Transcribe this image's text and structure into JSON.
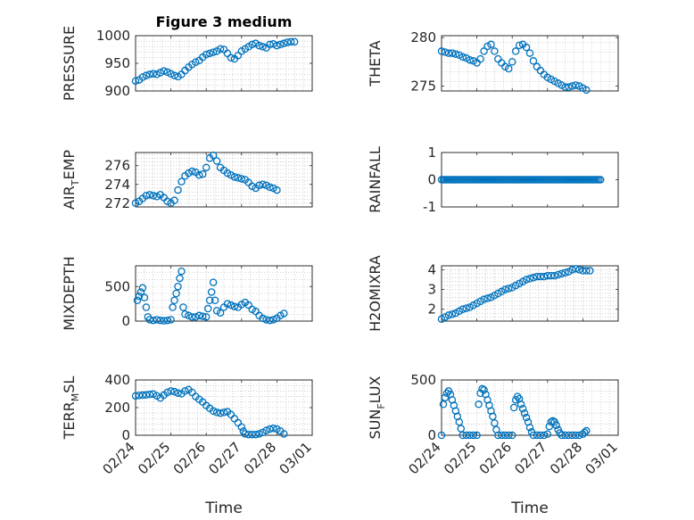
{
  "figure": {
    "title": "Figure 3 medium",
    "xlabel": "Time",
    "marker_color": "#0072BD"
  },
  "chart_data": [
    {
      "type": "scatter",
      "ylabel": "PRESSURE",
      "xlim": [
        "02/24",
        "03/01"
      ],
      "ylim": [
        900,
        1000
      ],
      "yticks": [
        900,
        950,
        1000
      ],
      "show_xticklabels": false,
      "grid": true,
      "points": [
        [
          0.0,
          918
        ],
        [
          0.1,
          920
        ],
        [
          0.2,
          925
        ],
        [
          0.3,
          928
        ],
        [
          0.4,
          930
        ],
        [
          0.5,
          931
        ],
        [
          0.6,
          930
        ],
        [
          0.7,
          933
        ],
        [
          0.8,
          936
        ],
        [
          0.9,
          934
        ],
        [
          1.0,
          931
        ],
        [
          1.1,
          928
        ],
        [
          1.2,
          926
        ],
        [
          1.3,
          930
        ],
        [
          1.4,
          937
        ],
        [
          1.5,
          943
        ],
        [
          1.6,
          948
        ],
        [
          1.7,
          952
        ],
        [
          1.8,
          955
        ],
        [
          1.9,
          961
        ],
        [
          2.0,
          966
        ],
        [
          2.1,
          968
        ],
        [
          2.2,
          970
        ],
        [
          2.3,
          972
        ],
        [
          2.4,
          976
        ],
        [
          2.5,
          975
        ],
        [
          2.6,
          968
        ],
        [
          2.7,
          960
        ],
        [
          2.8,
          958
        ],
        [
          2.9,
          964
        ],
        [
          3.0,
          972
        ],
        [
          3.1,
          976
        ],
        [
          3.2,
          980
        ],
        [
          3.3,
          984
        ],
        [
          3.4,
          986
        ],
        [
          3.5,
          982
        ],
        [
          3.6,
          980
        ],
        [
          3.7,
          978
        ],
        [
          3.8,
          984
        ],
        [
          3.9,
          985
        ],
        [
          4.0,
          982
        ],
        [
          4.1,
          984
        ],
        [
          4.2,
          986
        ],
        [
          4.3,
          988
        ],
        [
          4.4,
          989
        ],
        [
          4.5,
          989
        ]
      ]
    },
    {
      "type": "scatter",
      "ylabel": "THETA",
      "xlim": [
        "02/24",
        "03/01"
      ],
      "ylim": [
        274.5,
        280.2
      ],
      "yticks": [
        275,
        280
      ],
      "show_xticklabels": false,
      "grid": true,
      "points": [
        [
          0.0,
          278.6
        ],
        [
          0.1,
          278.5
        ],
        [
          0.2,
          278.4
        ],
        [
          0.3,
          278.4
        ],
        [
          0.4,
          278.3
        ],
        [
          0.5,
          278.2
        ],
        [
          0.6,
          278.0
        ],
        [
          0.7,
          277.9
        ],
        [
          0.8,
          277.7
        ],
        [
          0.9,
          277.6
        ],
        [
          1.0,
          277.4
        ],
        [
          1.1,
          277.8
        ],
        [
          1.2,
          278.6
        ],
        [
          1.3,
          279.1
        ],
        [
          1.4,
          279.3
        ],
        [
          1.5,
          278.6
        ],
        [
          1.6,
          277.8
        ],
        [
          1.7,
          277.4
        ],
        [
          1.8,
          277.0
        ],
        [
          1.9,
          276.8
        ],
        [
          2.0,
          277.5
        ],
        [
          2.1,
          278.6
        ],
        [
          2.2,
          279.2
        ],
        [
          2.3,
          279.3
        ],
        [
          2.4,
          279.0
        ],
        [
          2.5,
          278.4
        ],
        [
          2.6,
          277.6
        ],
        [
          2.7,
          277.0
        ],
        [
          2.8,
          276.6
        ],
        [
          2.9,
          276.2
        ],
        [
          3.0,
          275.9
        ],
        [
          3.1,
          275.7
        ],
        [
          3.2,
          275.5
        ],
        [
          3.3,
          275.3
        ],
        [
          3.4,
          275.1
        ],
        [
          3.5,
          274.9
        ],
        [
          3.6,
          274.9
        ],
        [
          3.7,
          275.0
        ],
        [
          3.8,
          275.1
        ],
        [
          3.9,
          275.0
        ],
        [
          4.0,
          274.8
        ],
        [
          4.1,
          274.6
        ]
      ]
    },
    {
      "type": "scatter",
      "ylabel_parts": [
        "AIR",
        "T",
        "EMP"
      ],
      "xlim": [
        "02/24",
        "03/01"
      ],
      "ylim": [
        271.6,
        277.4
      ],
      "yticks": [
        272,
        274,
        276
      ],
      "show_xticklabels": false,
      "grid": true,
      "points": [
        [
          0.0,
          272.0
        ],
        [
          0.1,
          272.2
        ],
        [
          0.2,
          272.5
        ],
        [
          0.3,
          272.8
        ],
        [
          0.4,
          272.9
        ],
        [
          0.5,
          272.8
        ],
        [
          0.6,
          272.7
        ],
        [
          0.7,
          272.9
        ],
        [
          0.8,
          272.6
        ],
        [
          0.9,
          272.2
        ],
        [
          1.0,
          272.0
        ],
        [
          1.1,
          272.3
        ],
        [
          1.2,
          273.4
        ],
        [
          1.3,
          274.3
        ],
        [
          1.4,
          274.9
        ],
        [
          1.5,
          275.2
        ],
        [
          1.6,
          275.4
        ],
        [
          1.7,
          275.3
        ],
        [
          1.8,
          275.0
        ],
        [
          1.9,
          275.1
        ],
        [
          2.0,
          275.8
        ],
        [
          2.1,
          276.8
        ],
        [
          2.2,
          277.1
        ],
        [
          2.3,
          276.5
        ],
        [
          2.4,
          275.8
        ],
        [
          2.5,
          275.5
        ],
        [
          2.6,
          275.2
        ],
        [
          2.7,
          275.0
        ],
        [
          2.8,
          274.8
        ],
        [
          2.9,
          274.7
        ],
        [
          3.0,
          274.6
        ],
        [
          3.1,
          274.5
        ],
        [
          3.2,
          274.2
        ],
        [
          3.3,
          273.8
        ],
        [
          3.4,
          273.6
        ],
        [
          3.5,
          273.9
        ],
        [
          3.6,
          274.0
        ],
        [
          3.7,
          273.9
        ],
        [
          3.8,
          273.7
        ],
        [
          3.9,
          273.6
        ],
        [
          4.0,
          273.4
        ]
      ]
    },
    {
      "type": "scatter",
      "ylabel": "RAINFALL",
      "xlim": [
        "02/24",
        "03/01"
      ],
      "ylim": [
        -1,
        1
      ],
      "yticks": [
        -1,
        0,
        1
      ],
      "show_xticklabels": false,
      "grid": false,
      "constant_value": 0,
      "x_range": [
        0.0,
        4.5
      ],
      "point_count": 91
    },
    {
      "type": "scatter",
      "ylabel": "MIXDEPTH",
      "xlim": [
        "02/24",
        "03/01"
      ],
      "ylim": [
        0,
        800
      ],
      "yticks": [
        0,
        500
      ],
      "show_xticklabels": false,
      "grid": true,
      "points": [
        [
          0.05,
          300
        ],
        [
          0.1,
          360
        ],
        [
          0.15,
          420
        ],
        [
          0.2,
          480
        ],
        [
          0.25,
          340
        ],
        [
          0.3,
          200
        ],
        [
          0.35,
          60
        ],
        [
          0.4,
          20
        ],
        [
          0.5,
          10
        ],
        [
          0.6,
          20
        ],
        [
          0.7,
          10
        ],
        [
          0.8,
          5
        ],
        [
          0.9,
          10
        ],
        [
          1.0,
          20
        ],
        [
          1.05,
          200
        ],
        [
          1.1,
          300
        ],
        [
          1.15,
          400
        ],
        [
          1.2,
          500
        ],
        [
          1.25,
          620
        ],
        [
          1.3,
          720
        ],
        [
          1.35,
          200
        ],
        [
          1.4,
          100
        ],
        [
          1.5,
          80
        ],
        [
          1.6,
          60
        ],
        [
          1.7,
          60
        ],
        [
          1.8,
          80
        ],
        [
          1.9,
          70
        ],
        [
          2.0,
          60
        ],
        [
          2.05,
          180
        ],
        [
          2.1,
          300
        ],
        [
          2.15,
          420
        ],
        [
          2.2,
          560
        ],
        [
          2.25,
          300
        ],
        [
          2.3,
          150
        ],
        [
          2.4,
          120
        ],
        [
          2.5,
          200
        ],
        [
          2.6,
          250
        ],
        [
          2.7,
          230
        ],
        [
          2.8,
          210
        ],
        [
          2.9,
          200
        ],
        [
          3.0,
          240
        ],
        [
          3.1,
          270
        ],
        [
          3.2,
          230
        ],
        [
          3.3,
          170
        ],
        [
          3.4,
          140
        ],
        [
          3.5,
          80
        ],
        [
          3.6,
          40
        ],
        [
          3.7,
          20
        ],
        [
          3.8,
          10
        ],
        [
          3.9,
          20
        ],
        [
          4.0,
          40
        ],
        [
          4.1,
          80
        ],
        [
          4.2,
          110
        ]
      ]
    },
    {
      "type": "scatter",
      "ylabel": "H2OMIXRA",
      "xlim": [
        "02/24",
        "03/01"
      ],
      "ylim": [
        1.4,
        4.2
      ],
      "yticks": [
        2,
        3,
        4
      ],
      "show_xticklabels": false,
      "grid": true,
      "points": [
        [
          0.0,
          1.5
        ],
        [
          0.1,
          1.6
        ],
        [
          0.2,
          1.7
        ],
        [
          0.3,
          1.75
        ],
        [
          0.4,
          1.8
        ],
        [
          0.5,
          1.9
        ],
        [
          0.6,
          2.0
        ],
        [
          0.7,
          2.05
        ],
        [
          0.8,
          2.1
        ],
        [
          0.9,
          2.2
        ],
        [
          1.0,
          2.3
        ],
        [
          1.1,
          2.4
        ],
        [
          1.2,
          2.5
        ],
        [
          1.3,
          2.55
        ],
        [
          1.4,
          2.6
        ],
        [
          1.5,
          2.7
        ],
        [
          1.6,
          2.8
        ],
        [
          1.7,
          2.9
        ],
        [
          1.8,
          3.0
        ],
        [
          1.9,
          3.05
        ],
        [
          2.0,
          3.1
        ],
        [
          2.1,
          3.2
        ],
        [
          2.2,
          3.3
        ],
        [
          2.3,
          3.4
        ],
        [
          2.4,
          3.5
        ],
        [
          2.5,
          3.55
        ],
        [
          2.6,
          3.6
        ],
        [
          2.7,
          3.65
        ],
        [
          2.8,
          3.65
        ],
        [
          2.9,
          3.65
        ],
        [
          3.0,
          3.7
        ],
        [
          3.1,
          3.7
        ],
        [
          3.2,
          3.7
        ],
        [
          3.3,
          3.75
        ],
        [
          3.4,
          3.8
        ],
        [
          3.5,
          3.85
        ],
        [
          3.6,
          3.9
        ],
        [
          3.7,
          4.0
        ],
        [
          3.8,
          4.05
        ],
        [
          3.9,
          4.0
        ],
        [
          4.0,
          3.95
        ],
        [
          4.1,
          3.95
        ],
        [
          4.2,
          3.95
        ]
      ]
    },
    {
      "type": "scatter",
      "ylabel_parts": [
        "TERR",
        "M",
        "SL"
      ],
      "xlim": [
        "02/24",
        "03/01"
      ],
      "ylim": [
        0,
        400
      ],
      "yticks": [
        0,
        200,
        400
      ],
      "xticklabels": [
        "02/24",
        "02/25",
        "02/26",
        "02/27",
        "02/28",
        "03/01"
      ],
      "show_xticklabels": true,
      "grid": true,
      "points": [
        [
          0.0,
          285
        ],
        [
          0.1,
          288
        ],
        [
          0.2,
          290
        ],
        [
          0.3,
          292
        ],
        [
          0.4,
          296
        ],
        [
          0.5,
          298
        ],
        [
          0.6,
          285
        ],
        [
          0.7,
          270
        ],
        [
          0.8,
          290
        ],
        [
          0.9,
          310
        ],
        [
          1.0,
          320
        ],
        [
          1.1,
          315
        ],
        [
          1.2,
          305
        ],
        [
          1.3,
          300
        ],
        [
          1.4,
          320
        ],
        [
          1.5,
          330
        ],
        [
          1.6,
          310
        ],
        [
          1.7,
          280
        ],
        [
          1.8,
          260
        ],
        [
          1.9,
          240
        ],
        [
          2.0,
          215
        ],
        [
          2.1,
          195
        ],
        [
          2.2,
          175
        ],
        [
          2.3,
          165
        ],
        [
          2.4,
          160
        ],
        [
          2.5,
          165
        ],
        [
          2.6,
          170
        ],
        [
          2.7,
          150
        ],
        [
          2.8,
          120
        ],
        [
          2.9,
          90
        ],
        [
          3.0,
          60
        ],
        [
          3.05,
          30
        ],
        [
          3.1,
          10
        ],
        [
          3.2,
          5
        ],
        [
          3.3,
          5
        ],
        [
          3.4,
          5
        ],
        [
          3.5,
          10
        ],
        [
          3.6,
          20
        ],
        [
          3.7,
          35
        ],
        [
          3.8,
          45
        ],
        [
          3.9,
          50
        ],
        [
          4.0,
          45
        ],
        [
          4.1,
          30
        ],
        [
          4.2,
          10
        ]
      ]
    },
    {
      "type": "scatter",
      "ylabel_parts": [
        "SUN",
        "F",
        "LUX"
      ],
      "xlim": [
        "02/24",
        "03/01"
      ],
      "ylim": [
        0,
        500
      ],
      "yticks": [
        0,
        500
      ],
      "xticklabels": [
        "02/24",
        "02/25",
        "02/26",
        "02/27",
        "02/28",
        "03/01"
      ],
      "show_xticklabels": true,
      "grid": true,
      "points": [
        [
          0.0,
          0
        ],
        [
          0.05,
          280
        ],
        [
          0.1,
          340
        ],
        [
          0.15,
          380
        ],
        [
          0.2,
          400
        ],
        [
          0.25,
          370
        ],
        [
          0.3,
          320
        ],
        [
          0.35,
          270
        ],
        [
          0.4,
          220
        ],
        [
          0.45,
          170
        ],
        [
          0.5,
          120
        ],
        [
          0.55,
          60
        ],
        [
          0.6,
          0
        ],
        [
          0.7,
          0
        ],
        [
          0.8,
          0
        ],
        [
          0.9,
          0
        ],
        [
          1.0,
          0
        ],
        [
          1.05,
          280
        ],
        [
          1.1,
          380
        ],
        [
          1.15,
          420
        ],
        [
          1.2,
          410
        ],
        [
          1.25,
          370
        ],
        [
          1.3,
          320
        ],
        [
          1.35,
          270
        ],
        [
          1.4,
          220
        ],
        [
          1.45,
          170
        ],
        [
          1.5,
          110
        ],
        [
          1.55,
          50
        ],
        [
          1.6,
          0
        ],
        [
          1.7,
          0
        ],
        [
          1.8,
          0
        ],
        [
          1.9,
          0
        ],
        [
          2.0,
          0
        ],
        [
          2.05,
          250
        ],
        [
          2.1,
          320
        ],
        [
          2.15,
          350
        ],
        [
          2.2,
          330
        ],
        [
          2.25,
          280
        ],
        [
          2.3,
          240
        ],
        [
          2.35,
          200
        ],
        [
          2.4,
          160
        ],
        [
          2.45,
          120
        ],
        [
          2.5,
          70
        ],
        [
          2.55,
          30
        ],
        [
          2.6,
          0
        ],
        [
          2.7,
          0
        ],
        [
          2.8,
          0
        ],
        [
          2.9,
          0
        ],
        [
          3.0,
          10
        ],
        [
          3.05,
          80
        ],
        [
          3.1,
          120
        ],
        [
          3.15,
          130
        ],
        [
          3.2,
          120
        ],
        [
          3.25,
          90
        ],
        [
          3.3,
          50
        ],
        [
          3.35,
          20
        ],
        [
          3.4,
          0
        ],
        [
          3.5,
          0
        ],
        [
          3.6,
          0
        ],
        [
          3.7,
          0
        ],
        [
          3.8,
          0
        ],
        [
          3.9,
          0
        ],
        [
          4.0,
          10
        ],
        [
          4.05,
          25
        ],
        [
          4.1,
          40
        ]
      ]
    }
  ]
}
